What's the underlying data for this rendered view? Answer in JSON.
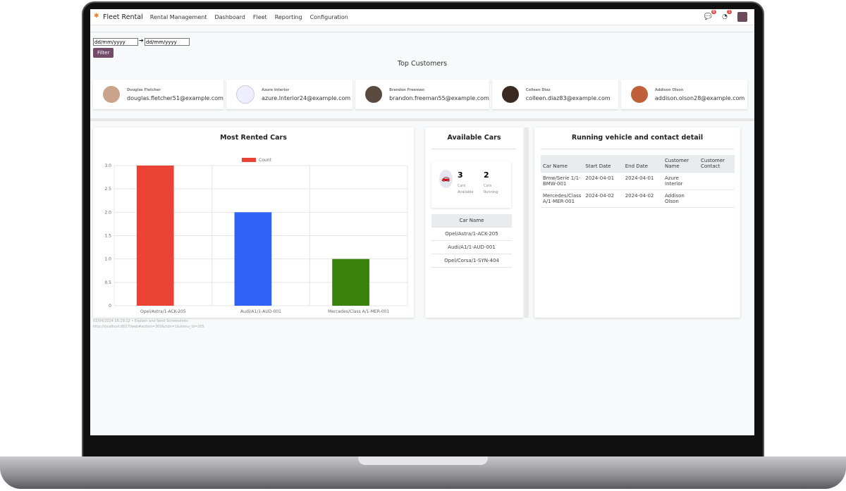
{
  "nav": {
    "brand": "Fleet Rental",
    "menu": [
      "Rental Management",
      "Dashboard",
      "Fleet",
      "Reporting",
      "Configuration"
    ],
    "messages_badge": "6",
    "activity_badge": "1"
  },
  "filter": {
    "from_placeholder": "dd/mm/yyyy",
    "to_placeholder": "dd/mm/yyyy",
    "button": "Filter"
  },
  "top_customers": {
    "title": "Top Customers",
    "items": [
      {
        "name": "Douglas Fletcher",
        "email": "douglas.fletcher51@example.com"
      },
      {
        "name": "Azure Interior",
        "email": "azure.Interior24@example.com"
      },
      {
        "name": "Brandon Freeman",
        "email": "brandon.freeman55@example.com"
      },
      {
        "name": "Colleen Diaz",
        "email": "colleen.diaz83@example.com"
      },
      {
        "name": "Addison Olson",
        "email": "addison.olson28@example.com"
      }
    ]
  },
  "chart_data": {
    "type": "bar",
    "title": "Most Rented Cars",
    "categories": [
      "Opel/Astra/1-ACK-205",
      "Audi/A1/1-AUD-001",
      "Mercedes/Class A/1-MER-001"
    ],
    "series": [
      {
        "name": "Count",
        "values": [
          3,
          2,
          1
        ]
      }
    ],
    "colors": [
      "#ea4335",
      "#2f63f5",
      "#38810b"
    ],
    "ylim": [
      0,
      3
    ],
    "yticks": [
      "0",
      "0.5",
      "1.0",
      "1.5",
      "2.0",
      "2.5",
      "3.0"
    ],
    "legend": "top",
    "grid": true
  },
  "available": {
    "title": "Available Cars",
    "available_count": "3",
    "available_label": "Cars Available",
    "running_count": "2",
    "running_label": "Cars Running",
    "col": "Car Name",
    "cars": [
      "Opel/Astra/1-ACK-205",
      "Audi/A1/1-AUD-001",
      "Opel/Corsa/1-SYN-404"
    ]
  },
  "running": {
    "title": "Running vehicle and contact detail",
    "headers": [
      "Car Name",
      "Start Date",
      "End Date",
      "Customer Name",
      "Customer Contact"
    ],
    "rows": [
      [
        "Bmw/Serie 1/1-BMW-001",
        "2024-04-01",
        "2024-04-01",
        "Azure Interior",
        ""
      ],
      [
        "Mercedes/Class A/1-MER-001",
        "2024-04-02",
        "2024-04-02",
        "Addison Olson",
        ""
      ]
    ]
  },
  "footer": {
    "line1": "02/04/2024 16:29:12 • Explain and Send Screenshots",
    "line2": "http://localhost:8017/web#action=300&cids=1&menu_id=205"
  }
}
